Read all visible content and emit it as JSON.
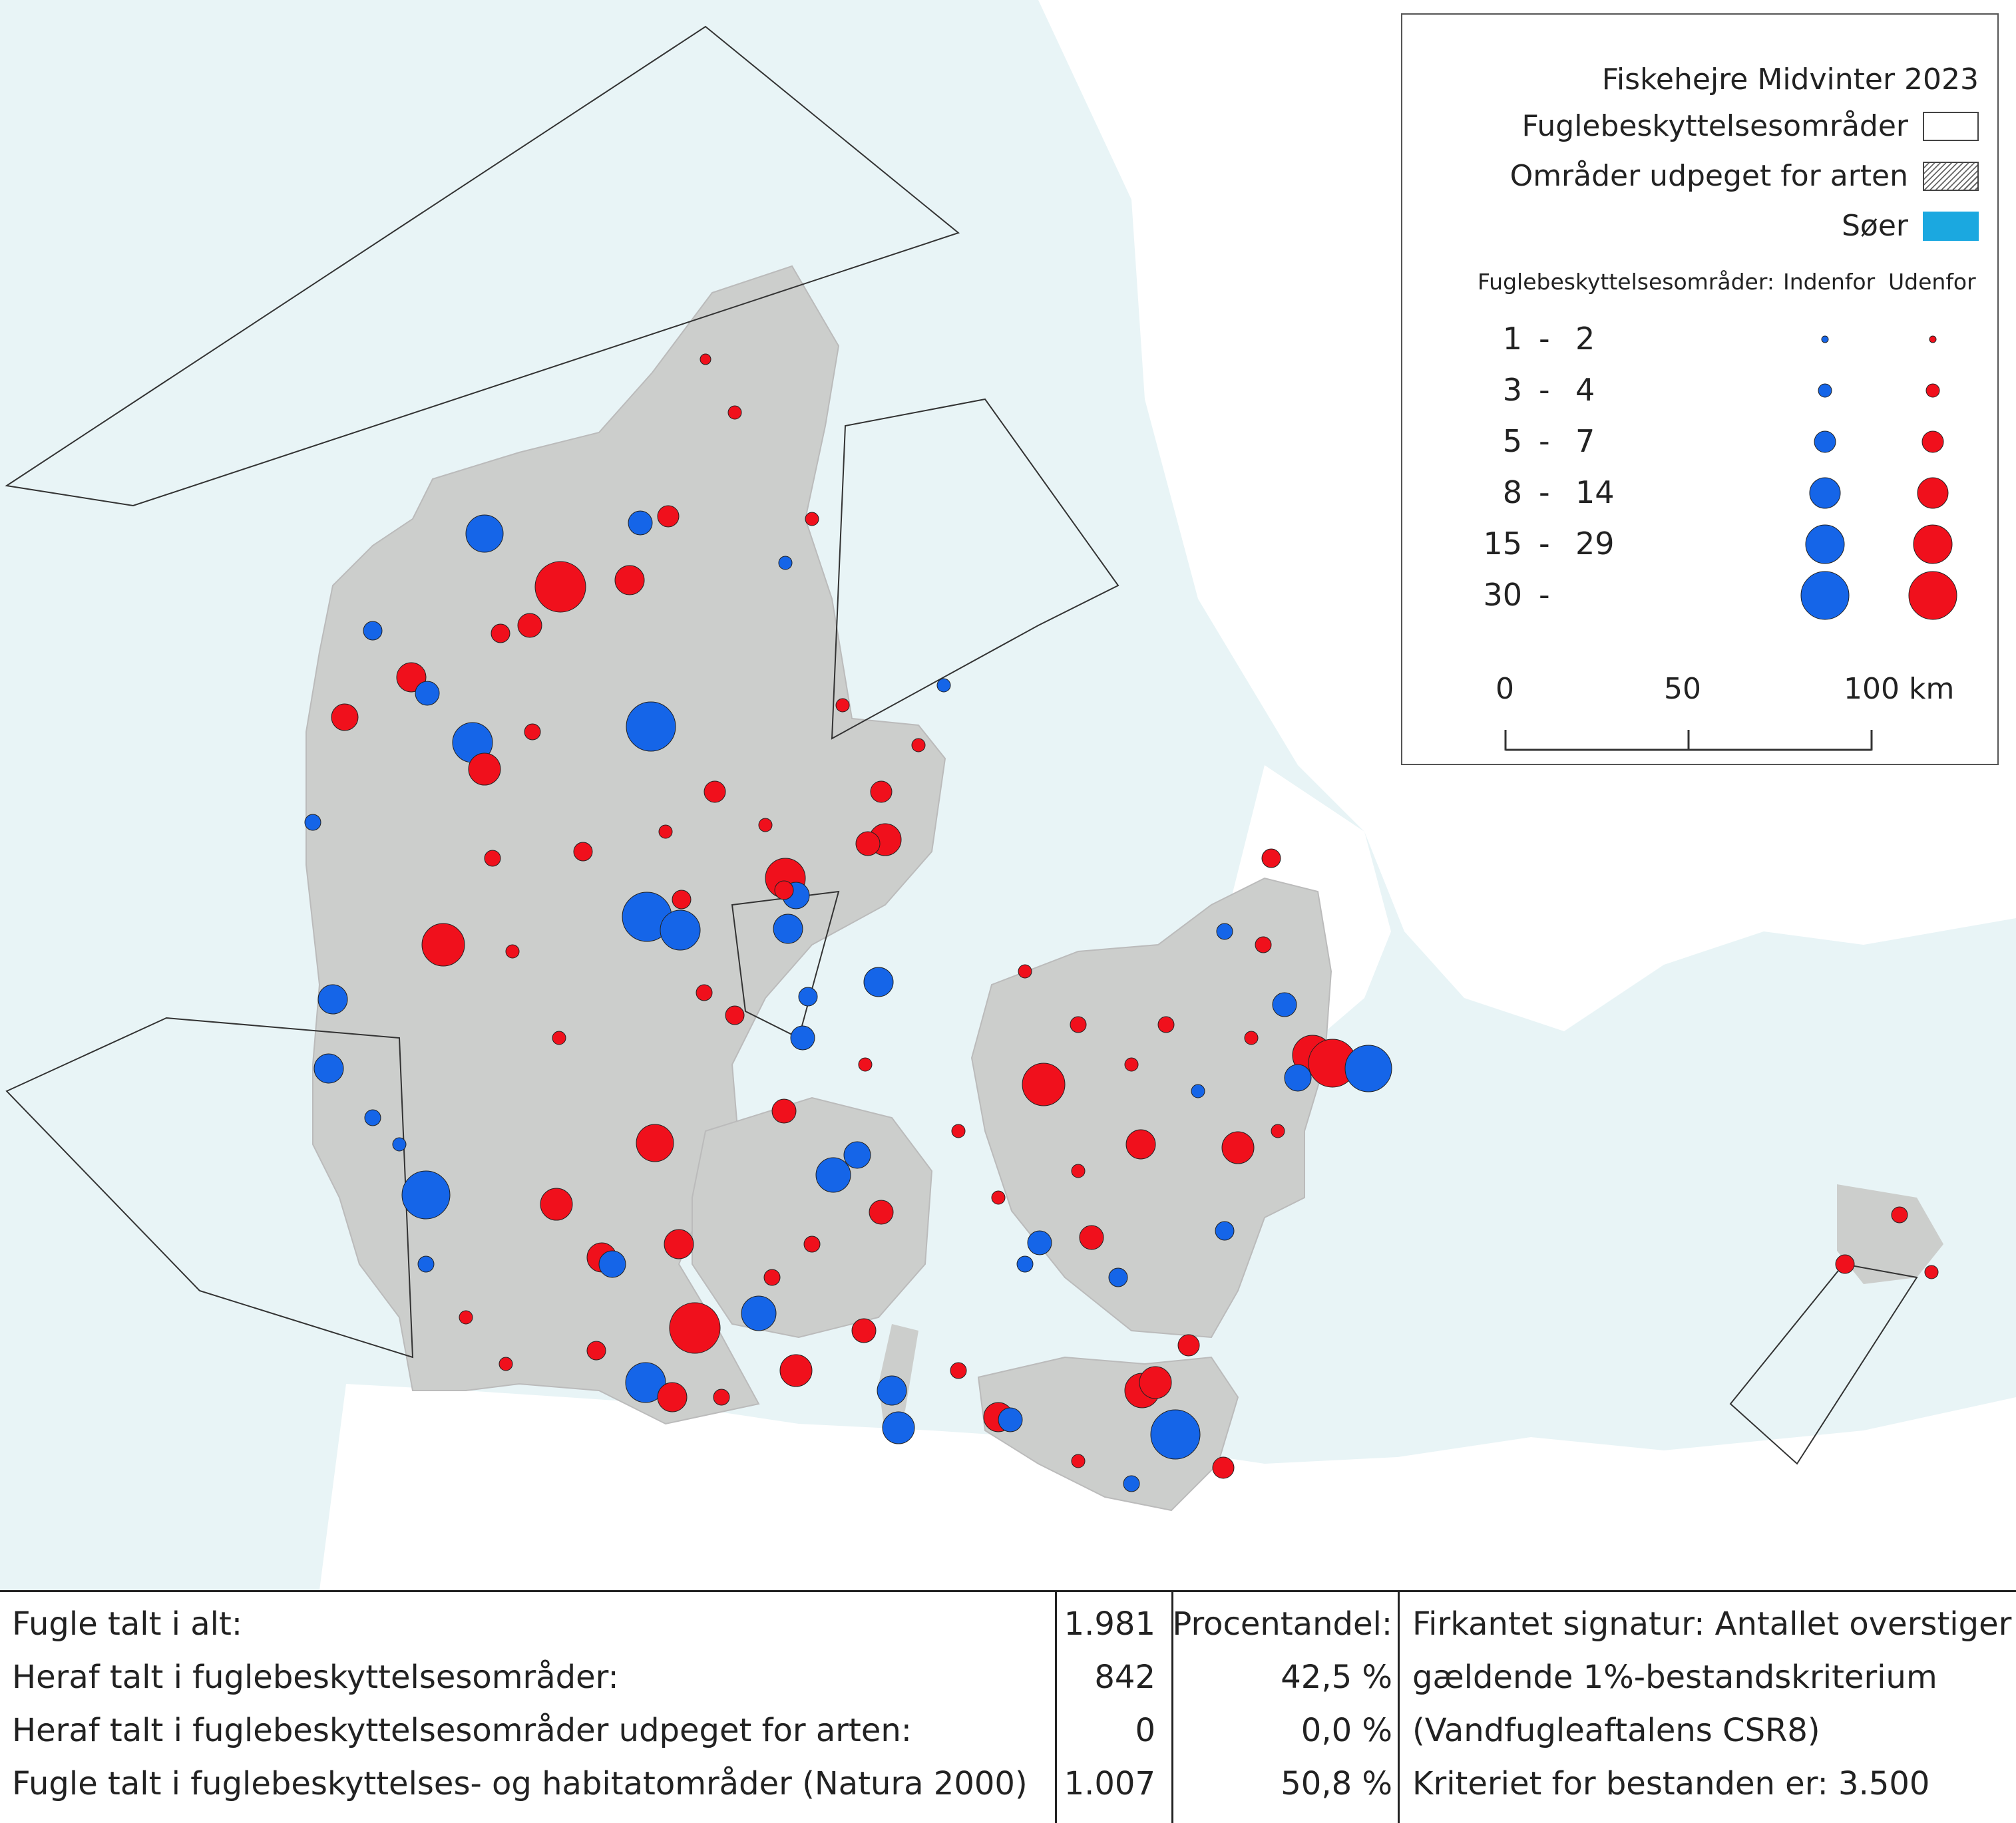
{
  "legend": {
    "title": "Fiskehejre Midvinter 2023",
    "items": [
      {
        "label": "Fuglebeskyttelsesområder",
        "swatch": "plain"
      },
      {
        "label": "Områder udpeget for arten",
        "swatch": "hatch"
      },
      {
        "label": "Søer",
        "swatch": "lake",
        "color": "#1ba8e0"
      }
    ],
    "header_group": "Fuglebeskyttelsesområder:",
    "header_inside": "Indenfor",
    "header_outside": "Udenfor",
    "classes": [
      {
        "from": "1",
        "to": "2"
      },
      {
        "from": "3",
        "to": "4"
      },
      {
        "from": "5",
        "to": "7"
      },
      {
        "from": "8",
        "to": "14"
      },
      {
        "from": "15",
        "to": "29"
      },
      {
        "from": "30",
        "to": ""
      }
    ],
    "class_dash": "-",
    "scale": {
      "ticks": [
        "0",
        "50",
        "100 km"
      ]
    },
    "colors": {
      "inside": "#1565e8",
      "outside": "#f0101c"
    }
  },
  "map": {
    "colors": {
      "sea": "#e8f4f6",
      "land_other": "#ffffff",
      "land_dk": "#cccecc",
      "lake": "#1ba8e0"
    }
  },
  "stats": {
    "rows": [
      {
        "label": "Fugle talt i alt:",
        "count": "1.981",
        "percent": ""
      },
      {
        "label": "Heraf talt i fuglebeskyttelsesområder:",
        "count": "842",
        "percent": "42,5 %"
      },
      {
        "label": "Heraf talt i fuglebeskyttelsesområder udpeget for arten:",
        "count": "0",
        "percent": "0,0 %"
      },
      {
        "label": "Fugle talt i fuglebeskyttelses- og habitatområder (Natura 2000)",
        "count": "1.007",
        "percent": "50,8 %"
      }
    ],
    "percent_header": "Procentandel:",
    "note_lines": [
      "Firkantet signatur: Antallet overstiger",
      "gældende 1%-bestandskriterium",
      "(Vandfugleaftalens CSR8)",
      "Kriteriet for bestanden er: 3.500"
    ]
  }
}
